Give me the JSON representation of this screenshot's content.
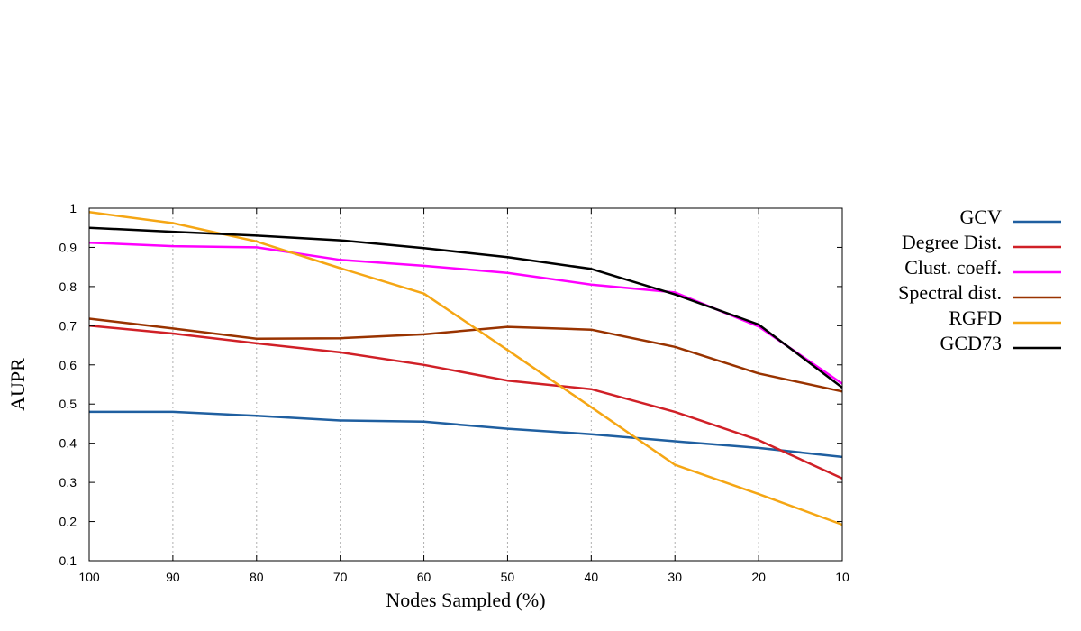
{
  "chart_data": {
    "type": "line",
    "title": "",
    "xlabel": "Nodes Sampled (%)",
    "ylabel": "AUPR",
    "x": [
      100,
      90,
      80,
      70,
      60,
      50,
      40,
      30,
      20,
      10
    ],
    "x_ticks": [
      "100",
      "90",
      "80",
      "70",
      "60",
      "50",
      "40",
      "30",
      "20",
      "10"
    ],
    "x_reversed": true,
    "ylim": [
      0.1,
      1.0
    ],
    "y_ticks": [
      "0.1",
      "0.2",
      "0.3",
      "0.4",
      "0.5",
      "0.6",
      "0.7",
      "0.8",
      "0.9",
      "1"
    ],
    "grid": "vertical dotted",
    "legend_position": "right",
    "series": [
      {
        "name": "GCV",
        "color": "#1f5fa0",
        "values": [
          0.48,
          0.48,
          0.47,
          0.458,
          0.455,
          0.437,
          0.423,
          0.405,
          0.388,
          0.365
        ]
      },
      {
        "name": "Degree Dist.",
        "color": "#d02027",
        "values": [
          0.7,
          0.68,
          0.655,
          0.632,
          0.6,
          0.56,
          0.538,
          0.48,
          0.408,
          0.31
        ]
      },
      {
        "name": "Clust. coeff.",
        "color": "#ff00ff",
        "values": [
          0.912,
          0.903,
          0.9,
          0.868,
          0.853,
          0.835,
          0.805,
          0.785,
          0.698,
          0.552
        ]
      },
      {
        "name": "Spectral dist.",
        "color": "#993300",
        "values": [
          0.718,
          0.693,
          0.667,
          0.668,
          0.678,
          0.697,
          0.69,
          0.646,
          0.578,
          0.532
        ]
      },
      {
        "name": "RGFD",
        "color": "#f5a614",
        "values": [
          0.99,
          0.962,
          0.915,
          0.847,
          0.782,
          0.638,
          0.492,
          0.345,
          0.27,
          0.192
        ]
      },
      {
        "name": "GCD73",
        "color": "#000000",
        "values": [
          0.95,
          0.94,
          0.93,
          0.918,
          0.898,
          0.875,
          0.845,
          0.78,
          0.703,
          0.542
        ]
      }
    ]
  }
}
